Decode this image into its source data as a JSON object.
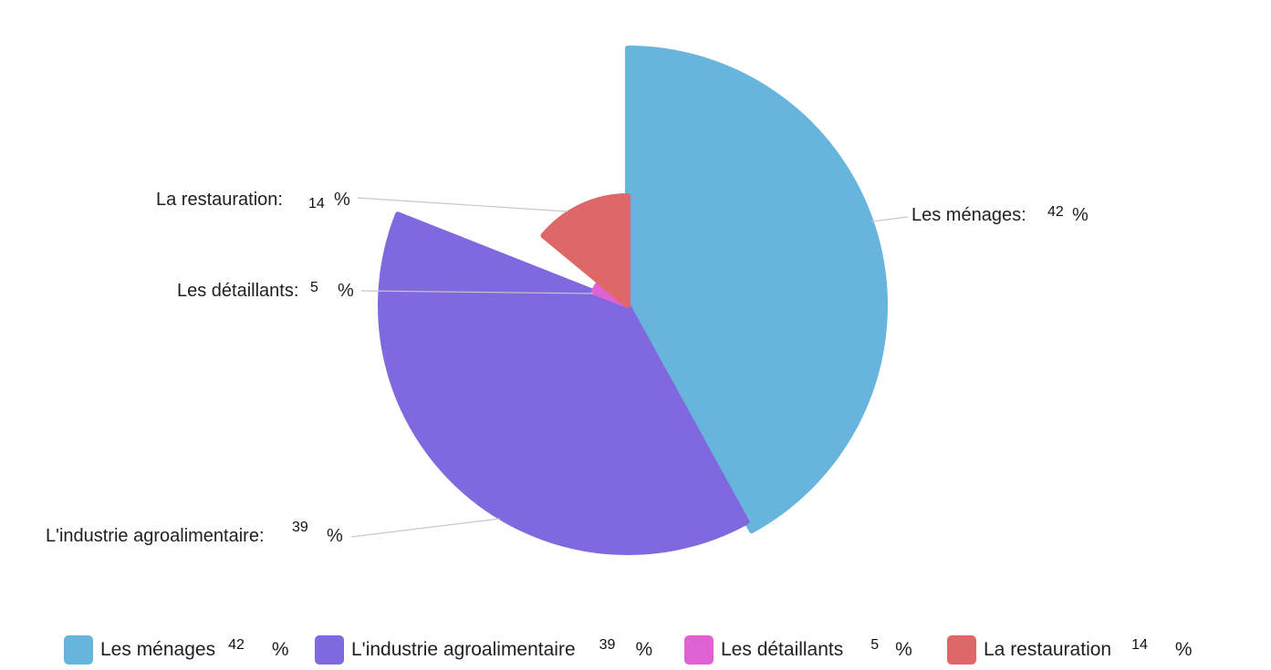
{
  "chart_data": {
    "type": "pie",
    "variant": "variable-radius pie",
    "slices": [
      {
        "label": "Les ménages",
        "value": 42,
        "color": "#67b5dc"
      },
      {
        "label": "L'industrie agroalimentaire",
        "value": 39,
        "color": "#8068de"
      },
      {
        "label": "Les détaillants",
        "value": 5,
        "color": "#de63d2"
      },
      {
        "label": "La restauration",
        "value": 14,
        "color": "#de6868"
      }
    ],
    "unit": "%",
    "callouts": [
      {
        "text": "Les ménages:"
      },
      {
        "text": "L'industrie agroalimentaire:"
      },
      {
        "text": "Les détaillants:"
      },
      {
        "text": "La restauration:"
      }
    ],
    "legend": {
      "position": "bottom",
      "items": [
        {
          "label": "Les ménages",
          "value": 42,
          "color": "#67b5dc"
        },
        {
          "label": "L'industrie agroalimentaire",
          "value": 39,
          "color": "#8068de"
        },
        {
          "label": "Les détaillants",
          "value": 5,
          "color": "#de63d2"
        },
        {
          "label": "La restauration",
          "value": 14,
          "color": "#de6868"
        }
      ]
    }
  }
}
